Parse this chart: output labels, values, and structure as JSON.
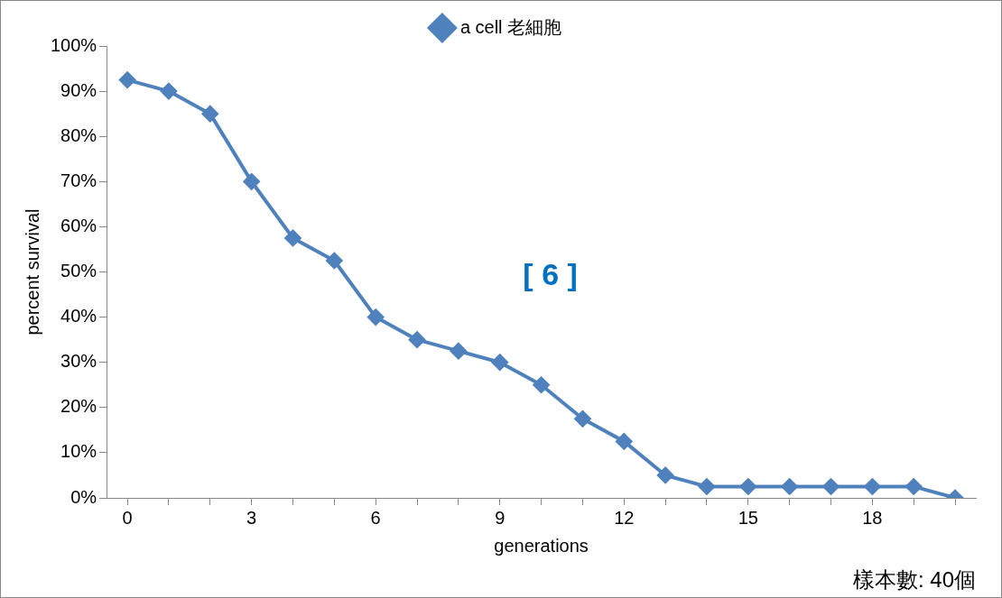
{
  "chart_data": {
    "type": "line",
    "xlabel": "generations",
    "ylabel": "percent survival",
    "categories": [
      "0",
      null,
      null,
      "3",
      null,
      null,
      "6",
      null,
      null,
      "9",
      null,
      null,
      "12",
      null,
      null,
      "15",
      null,
      null,
      "18",
      null,
      null
    ],
    "series": [
      {
        "name": "a cell 老細胞",
        "color": "#4f81bd",
        "values": [
          92.5,
          90,
          85,
          70,
          57.5,
          52.5,
          40,
          35,
          32.5,
          30,
          25,
          17.5,
          12.5,
          5,
          2.5,
          2.5,
          2.5,
          2.5,
          2.5,
          2.5,
          0
        ]
      }
    ],
    "ylim": [
      0,
      100
    ],
    "yticks": [
      {
        "value": 0,
        "label": "0%"
      },
      {
        "value": 10,
        "label": "10%"
      },
      {
        "value": 20,
        "label": "20%"
      },
      {
        "value": 30,
        "label": "30%"
      },
      {
        "value": 40,
        "label": "40%"
      },
      {
        "value": 50,
        "label": "50%"
      },
      {
        "value": 60,
        "label": "60%"
      },
      {
        "value": 70,
        "label": "70%"
      },
      {
        "value": 80,
        "label": "80%"
      },
      {
        "value": 90,
        "label": "90%"
      },
      {
        "value": 100,
        "label": "100%"
      }
    ],
    "annotations": [
      "[ 6 ]",
      "樣本數: 40個"
    ],
    "legend": "top",
    "marker": "diamond",
    "line_style": "solid",
    "grid": false
  }
}
